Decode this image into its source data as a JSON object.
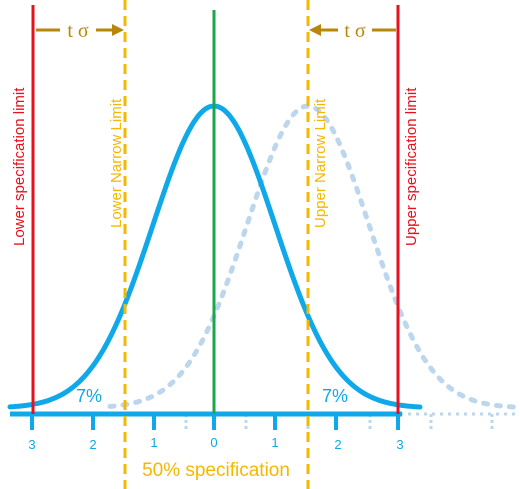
{
  "colors": {
    "spec_limit": "#e8101c",
    "narrow_limit": "#f5b800",
    "center": "#1aa64a",
    "curve": "#0fa8e8",
    "shifted_curve": "#bcd6ee",
    "arrow": "#b8860b"
  },
  "labels": {
    "lower_spec": "Lower specification limit",
    "upper_spec": "Upper specification limit",
    "lower_narrow": "Lower Narrow Limit",
    "upper_narrow": "Upper Narrow Limit",
    "t_sigma_left": "t σ",
    "t_sigma_right": "t σ",
    "pct_left": "7%",
    "pct_right": "7%",
    "bottom": "50% specification"
  },
  "axis": {
    "ticks": [
      "3",
      "2",
      "1",
      "0",
      "1",
      "2",
      "3"
    ]
  }
}
